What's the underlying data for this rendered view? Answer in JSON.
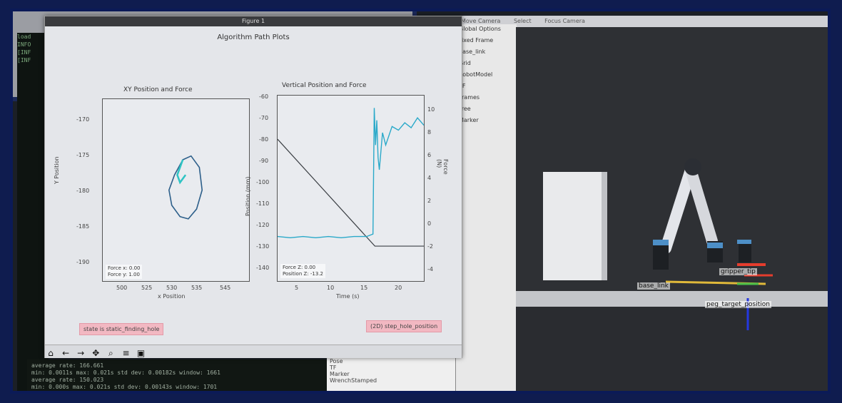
{
  "figure": {
    "window_title": "Figure 1",
    "suptitle": "Algorithm Path Plots",
    "buttons": {
      "left": "state is static_finding_hole",
      "right": "(2D) step_hole_position"
    }
  },
  "xy_plot": {
    "title": "XY Position and Force",
    "xlabel": "x Position",
    "ylabel": "Y Position",
    "xticks": [
      "500",
      "525",
      "530",
      "535",
      "545"
    ],
    "yticks": [
      "-170",
      "-175",
      "-180",
      "-185",
      "-190"
    ],
    "legend": [
      "Force x: 0.00",
      "Force y: 1.00"
    ]
  },
  "vertical_plot": {
    "title": "Vertical Position and Force",
    "xlabel": "Time (s)",
    "ylabel": "Position (mm)",
    "ylabel_right": "Force (N)",
    "xticks": [
      "5",
      "10",
      "15",
      "20"
    ],
    "yticks_left": [
      "-60",
      "-70",
      "-80",
      "-90",
      "-100",
      "-110",
      "-120",
      "-130",
      "-140"
    ],
    "yticks_right": [
      "10",
      "8",
      "6",
      "4",
      "2",
      "0",
      "-2",
      "-4"
    ],
    "legend": [
      "Force Z: 0.00",
      "Position Z: -13.2"
    ]
  },
  "chart_data": [
    {
      "type": "line",
      "title": "XY Position and Force",
      "xlabel": "x Position",
      "ylabel": "Y Position",
      "series": [
        {
          "x": [
            524,
            521,
            519,
            520,
            523,
            526,
            529,
            531,
            530,
            527,
            524,
            522,
            523,
            525
          ],
          "y": [
            -176,
            -178,
            -180,
            -182,
            -183.5,
            -183.8,
            -182.5,
            -180,
            -177,
            -175.5,
            -176,
            -178,
            -179,
            -178
          ]
        }
      ]
    },
    {
      "type": "line",
      "title": "Vertical Position and Force",
      "xlabel": "Time (s)",
      "ylabel": "Position (mm)",
      "series": [
        {
          "x": [
            0,
            15.3,
            15.3,
            23
          ],
          "y": [
            -80,
            -129,
            -129,
            -129
          ]
        },
        {
          "x": [
            0,
            2,
            4,
            6,
            8,
            10,
            12,
            14,
            15,
            15.2,
            15.4,
            15.6,
            15.8,
            16,
            16.5,
            17,
            18,
            19,
            20,
            21,
            22,
            23
          ],
          "y": [
            -1.4,
            -1.5,
            -1.4,
            -1.5,
            -1.4,
            -1.5,
            -1.4,
            -1.4,
            -1.2,
            9,
            6,
            8,
            5,
            4,
            7,
            6,
            7.5,
            7.2,
            7.8,
            7.4,
            8.2,
            7.6
          ]
        }
      ]
    }
  ],
  "terminal": {
    "lines": [
      "average rate: 166.661",
      "min: 0.0011s max: 0.021s std dev: 0.00182s window: 1661",
      "average rate: 150.023",
      "min: 0.000s max: 0.021s std dev: 0.00143s window: 1701"
    ]
  },
  "rviz": {
    "header_tabs": [
      "Move Camera",
      "Select",
      "Focus Camera"
    ],
    "panel_items": [
      "Global Options",
      "Fixed Frame",
      "base_link",
      "Grid",
      "RobotModel",
      "TF",
      "Frames",
      "Tree",
      "Marker"
    ],
    "bottom_list": [
      "Pose",
      "TF",
      "Marker",
      "WrenchStamped"
    ],
    "labels": {
      "gripper_tip": "gripper_tip",
      "base_link": "base_link",
      "peg_position": "peg_target_position"
    }
  }
}
